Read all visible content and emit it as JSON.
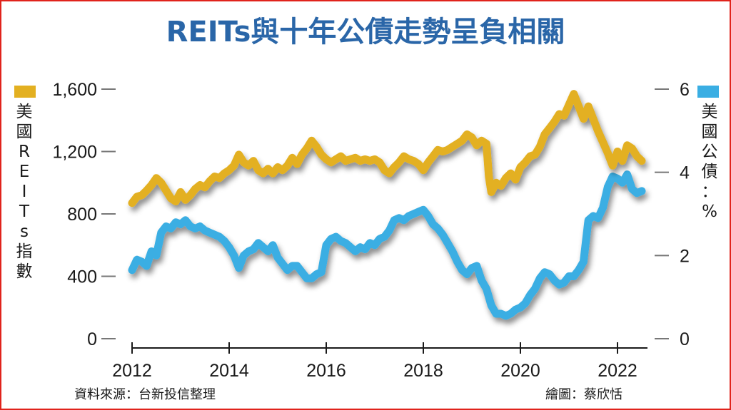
{
  "chart_data": {
    "type": "line",
    "title": "REITs與十年公債走勢呈負相關",
    "left_axis": {
      "label_chars": [
        "美",
        "國",
        "R",
        "E",
        "I",
        "T",
        "s",
        "指",
        "數"
      ],
      "ylim": [
        0,
        1600
      ],
      "ticks": [
        "0",
        "400",
        "800",
        "1,200",
        "1,600"
      ],
      "tick_values": [
        0,
        400,
        800,
        1200,
        1600
      ],
      "color": "#e3b021"
    },
    "right_axis": {
      "label_chars": [
        "美",
        "國",
        "公",
        "債",
        "：",
        "%"
      ],
      "ylim": [
        0,
        6
      ],
      "ticks": [
        "0",
        "2",
        "4",
        "6"
      ],
      "tick_values": [
        0,
        2,
        4,
        6
      ],
      "color": "#3aaee3"
    },
    "x_axis": {
      "xlim": [
        2012,
        2022.6
      ],
      "ticks": [
        "2012",
        "2014",
        "2016",
        "2018",
        "2020",
        "2022"
      ],
      "tick_values": [
        2012,
        2014,
        2016,
        2018,
        2020,
        2022
      ]
    },
    "series": [
      {
        "name": "美國REITs指數",
        "axis": "left",
        "color": "#e3b021",
        "points": [
          [
            2012.0,
            870
          ],
          [
            2012.1,
            910
          ],
          [
            2012.2,
            920
          ],
          [
            2012.3,
            950
          ],
          [
            2012.4,
            985
          ],
          [
            2012.5,
            1030
          ],
          [
            2012.6,
            1000
          ],
          [
            2012.7,
            950
          ],
          [
            2012.8,
            900
          ],
          [
            2012.9,
            880
          ],
          [
            2013.0,
            940
          ],
          [
            2013.1,
            890
          ],
          [
            2013.2,
            920
          ],
          [
            2013.3,
            960
          ],
          [
            2013.4,
            985
          ],
          [
            2013.5,
            970
          ],
          [
            2013.6,
            1010
          ],
          [
            2013.7,
            1040
          ],
          [
            2013.8,
            1030
          ],
          [
            2013.9,
            1060
          ],
          [
            2014.0,
            1080
          ],
          [
            2014.1,
            1110
          ],
          [
            2014.2,
            1180
          ],
          [
            2014.3,
            1130
          ],
          [
            2014.4,
            1110
          ],
          [
            2014.5,
            1140
          ],
          [
            2014.6,
            1080
          ],
          [
            2014.7,
            1060
          ],
          [
            2014.8,
            1090
          ],
          [
            2014.9,
            1060
          ],
          [
            2015.0,
            1100
          ],
          [
            2015.1,
            1080
          ],
          [
            2015.2,
            1110
          ],
          [
            2015.3,
            1160
          ],
          [
            2015.4,
            1120
          ],
          [
            2015.5,
            1180
          ],
          [
            2015.6,
            1220
          ],
          [
            2015.7,
            1270
          ],
          [
            2015.8,
            1230
          ],
          [
            2015.9,
            1180
          ],
          [
            2016.0,
            1150
          ],
          [
            2016.1,
            1130
          ],
          [
            2016.2,
            1150
          ],
          [
            2016.3,
            1170
          ],
          [
            2016.4,
            1140
          ],
          [
            2016.5,
            1150
          ],
          [
            2016.6,
            1160
          ],
          [
            2016.7,
            1140
          ],
          [
            2016.8,
            1150
          ],
          [
            2016.9,
            1140
          ],
          [
            2017.0,
            1150
          ],
          [
            2017.1,
            1130
          ],
          [
            2017.2,
            1080
          ],
          [
            2017.3,
            1060
          ],
          [
            2017.4,
            1100
          ],
          [
            2017.5,
            1130
          ],
          [
            2017.6,
            1170
          ],
          [
            2017.7,
            1150
          ],
          [
            2017.8,
            1140
          ],
          [
            2017.9,
            1120
          ],
          [
            2018.0,
            1080
          ],
          [
            2018.1,
            1130
          ],
          [
            2018.2,
            1170
          ],
          [
            2018.3,
            1210
          ],
          [
            2018.4,
            1200
          ],
          [
            2018.5,
            1210
          ],
          [
            2018.6,
            1230
          ],
          [
            2018.7,
            1250
          ],
          [
            2018.8,
            1270
          ],
          [
            2018.9,
            1310
          ],
          [
            2019.0,
            1290
          ],
          [
            2019.1,
            1240
          ],
          [
            2019.2,
            1270
          ],
          [
            2019.3,
            1250
          ],
          [
            2019.35,
            1040
          ],
          [
            2019.4,
            940
          ],
          [
            2019.5,
            1000
          ],
          [
            2019.6,
            980
          ],
          [
            2019.7,
            1030
          ],
          [
            2019.8,
            1060
          ],
          [
            2019.9,
            1020
          ],
          [
            2020.0,
            1100
          ],
          [
            2020.1,
            1130
          ],
          [
            2020.2,
            1170
          ],
          [
            2020.3,
            1180
          ],
          [
            2020.4,
            1230
          ],
          [
            2020.5,
            1310
          ],
          [
            2020.6,
            1350
          ],
          [
            2020.7,
            1390
          ],
          [
            2020.8,
            1440
          ],
          [
            2020.9,
            1430
          ],
          [
            2021.0,
            1500
          ],
          [
            2021.1,
            1570
          ],
          [
            2021.2,
            1490
          ],
          [
            2021.3,
            1410
          ],
          [
            2021.4,
            1490
          ],
          [
            2021.5,
            1410
          ],
          [
            2021.6,
            1330
          ],
          [
            2021.7,
            1260
          ],
          [
            2021.8,
            1190
          ],
          [
            2021.9,
            1110
          ],
          [
            2022.0,
            1200
          ],
          [
            2022.1,
            1140
          ],
          [
            2022.2,
            1240
          ],
          [
            2022.3,
            1220
          ],
          [
            2022.4,
            1170
          ],
          [
            2022.5,
            1140
          ]
        ]
      },
      {
        "name": "美國公債",
        "axis": "right",
        "color": "#3aaee3",
        "points": [
          [
            2012.0,
            1.65
          ],
          [
            2012.1,
            1.9
          ],
          [
            2012.2,
            1.85
          ],
          [
            2012.3,
            1.75
          ],
          [
            2012.4,
            2.1
          ],
          [
            2012.5,
            2.0
          ],
          [
            2012.6,
            2.55
          ],
          [
            2012.7,
            2.7
          ],
          [
            2012.8,
            2.65
          ],
          [
            2012.9,
            2.8
          ],
          [
            2013.0,
            2.75
          ],
          [
            2013.1,
            2.85
          ],
          [
            2013.2,
            2.7
          ],
          [
            2013.3,
            2.65
          ],
          [
            2013.4,
            2.7
          ],
          [
            2013.5,
            2.6
          ],
          [
            2013.6,
            2.55
          ],
          [
            2013.7,
            2.5
          ],
          [
            2013.8,
            2.45
          ],
          [
            2013.9,
            2.35
          ],
          [
            2014.0,
            2.2
          ],
          [
            2014.1,
            2.0
          ],
          [
            2014.2,
            1.7
          ],
          [
            2014.3,
            2.0
          ],
          [
            2014.4,
            2.1
          ],
          [
            2014.5,
            2.15
          ],
          [
            2014.6,
            2.3
          ],
          [
            2014.7,
            2.2
          ],
          [
            2014.8,
            2.1
          ],
          [
            2014.9,
            2.25
          ],
          [
            2015.0,
            1.95
          ],
          [
            2015.1,
            1.8
          ],
          [
            2015.2,
            1.65
          ],
          [
            2015.3,
            1.75
          ],
          [
            2015.4,
            1.75
          ],
          [
            2015.5,
            1.6
          ],
          [
            2015.6,
            1.45
          ],
          [
            2015.7,
            1.45
          ],
          [
            2015.8,
            1.55
          ],
          [
            2015.9,
            1.6
          ],
          [
            2016.0,
            2.25
          ],
          [
            2016.1,
            2.4
          ],
          [
            2016.2,
            2.45
          ],
          [
            2016.3,
            2.35
          ],
          [
            2016.4,
            2.3
          ],
          [
            2016.5,
            2.2
          ],
          [
            2016.6,
            2.1
          ],
          [
            2016.7,
            2.2
          ],
          [
            2016.8,
            2.15
          ],
          [
            2016.9,
            2.3
          ],
          [
            2017.0,
            2.25
          ],
          [
            2017.1,
            2.4
          ],
          [
            2017.2,
            2.45
          ],
          [
            2017.3,
            2.6
          ],
          [
            2017.4,
            2.85
          ],
          [
            2017.5,
            2.9
          ],
          [
            2017.6,
            2.85
          ],
          [
            2017.7,
            2.95
          ],
          [
            2017.8,
            3.0
          ],
          [
            2017.9,
            3.05
          ],
          [
            2018.0,
            3.1
          ],
          [
            2018.1,
            2.95
          ],
          [
            2018.2,
            2.75
          ],
          [
            2018.3,
            2.65
          ],
          [
            2018.4,
            2.5
          ],
          [
            2018.5,
            2.3
          ],
          [
            2018.6,
            2.1
          ],
          [
            2018.7,
            1.85
          ],
          [
            2018.8,
            1.65
          ],
          [
            2018.9,
            1.55
          ],
          [
            2019.0,
            1.7
          ],
          [
            2019.1,
            1.75
          ],
          [
            2019.2,
            1.4
          ],
          [
            2019.3,
            1.2
          ],
          [
            2019.4,
            0.8
          ],
          [
            2019.5,
            0.6
          ],
          [
            2019.6,
            0.6
          ],
          [
            2019.7,
            0.55
          ],
          [
            2019.8,
            0.6
          ],
          [
            2019.9,
            0.7
          ],
          [
            2020.0,
            0.75
          ],
          [
            2020.1,
            0.85
          ],
          [
            2020.2,
            1.05
          ],
          [
            2020.3,
            1.2
          ],
          [
            2020.4,
            1.45
          ],
          [
            2020.5,
            1.6
          ],
          [
            2020.6,
            1.55
          ],
          [
            2020.7,
            1.4
          ],
          [
            2020.8,
            1.3
          ],
          [
            2020.9,
            1.35
          ],
          [
            2021.0,
            1.5
          ],
          [
            2021.1,
            1.5
          ],
          [
            2021.2,
            1.65
          ],
          [
            2021.3,
            1.85
          ],
          [
            2021.4,
            2.85
          ],
          [
            2021.5,
            2.95
          ],
          [
            2021.6,
            2.9
          ],
          [
            2021.7,
            3.15
          ],
          [
            2021.8,
            3.65
          ],
          [
            2021.9,
            3.9
          ],
          [
            2022.0,
            3.85
          ],
          [
            2022.1,
            3.75
          ],
          [
            2022.2,
            3.95
          ],
          [
            2022.3,
            3.6
          ],
          [
            2022.4,
            3.5
          ],
          [
            2022.5,
            3.55
          ]
        ]
      }
    ]
  },
  "footer": {
    "source": "資料來源：台新投信整理",
    "credit": "繪圖：蔡欣恬"
  }
}
